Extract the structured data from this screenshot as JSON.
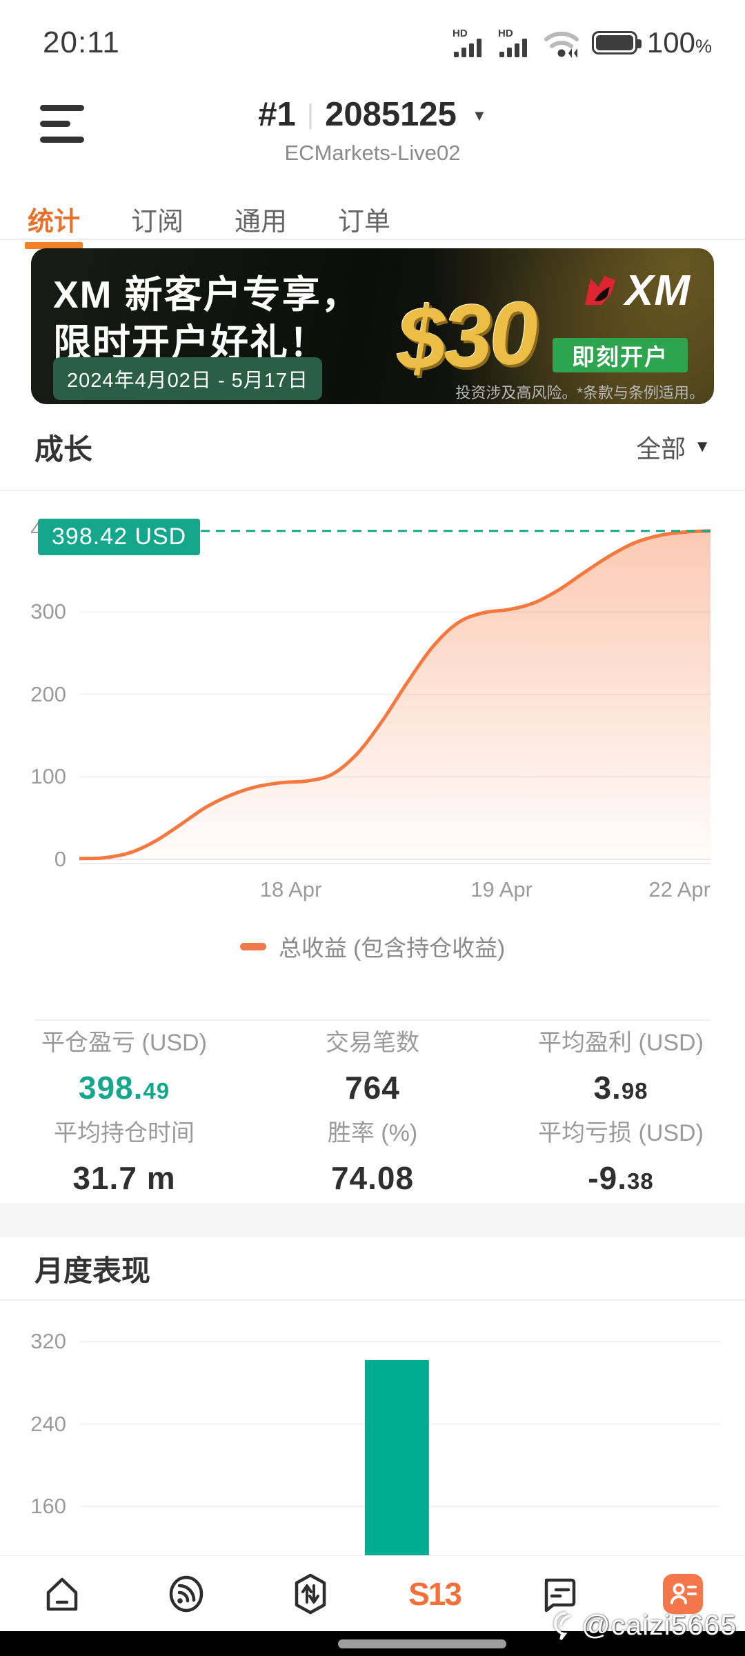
{
  "status_bar": {
    "time": "20:11",
    "hd_label": "HD",
    "battery_value": "100",
    "battery_symbol": "%"
  },
  "header": {
    "account_rank": "#1",
    "account_id": "2085125",
    "dropdown_caret": "▼",
    "server_name": "ECMarkets-Live02"
  },
  "tabs": {
    "items": [
      {
        "label": "统计",
        "active": true
      },
      {
        "label": "订阅",
        "active": false
      },
      {
        "label": "通用",
        "active": false
      },
      {
        "label": "订单",
        "active": false
      }
    ]
  },
  "banner": {
    "title_line1": "XM 新客户专享，",
    "title_line2": "限时开户好礼！",
    "date_range": "2024年4月02日 - 5月17日",
    "amount": "$30",
    "brand": "XM",
    "cta_label": "即刻开户",
    "disclaimer": "投资涉及高风险。*条款与条例适用。"
  },
  "growth": {
    "title": "成长",
    "filter_label": "全部",
    "filter_caret": "▼",
    "annotation_label": "398.42 USD",
    "legend_label": "总收益 (包含持仓收益)"
  },
  "stats": {
    "items": [
      {
        "label": "平仓盈亏 (USD)",
        "value": "398.49",
        "int": "398.",
        "dec": "49",
        "green": true
      },
      {
        "label": "交易笔数",
        "value": "764",
        "int": "764",
        "dec": "",
        "green": false
      },
      {
        "label": "平均盈利 (USD)",
        "value": "3.98",
        "int": "3.",
        "dec": "98",
        "green": false
      },
      {
        "label": "平均持仓时间",
        "value": "31.7 m",
        "int": "31.7 m",
        "dec": "",
        "green": false
      },
      {
        "label": "胜率 (%)",
        "value": "74.08",
        "int": "74.08",
        "dec": "",
        "green": false
      },
      {
        "label": "平均亏损 (USD)",
        "value": "-9.38",
        "int": "-9.",
        "dec": "38",
        "green": false
      }
    ]
  },
  "monthly": {
    "title": "月度表现"
  },
  "bottom_nav": {
    "items": [
      "home",
      "feed",
      "trade",
      "s13",
      "chat",
      "contacts"
    ],
    "s13_label": "S13",
    "active_item": "contacts"
  },
  "watermark": {
    "handle": "@caizi5665"
  },
  "colors": {
    "accent_orange": "#e8722b",
    "chart_line_orange": "#f5793f",
    "teal": "#14a78c",
    "bar_teal": "#00ac90",
    "stat_green": "#14a78c",
    "banner_button_green": "#2da44e",
    "banner_date_badge_green": "#2a5e45",
    "nav_active_orange": "#f4764b"
  },
  "chart_data": [
    {
      "type": "area",
      "title": "成长",
      "legend": [
        "总收益 (包含持仓收益)"
      ],
      "legend_position": "bottom",
      "grid": true,
      "yticks": [
        0,
        100,
        200,
        300,
        400
      ],
      "grid_values": [
        0,
        100,
        200,
        300
      ],
      "ylim": [
        0,
        430
      ],
      "annotation_value": 398.42,
      "annotation_label": "398.42 USD",
      "xticks": [
        {
          "label": "18 Apr",
          "pos": 0.335
        },
        {
          "label": "19 Apr",
          "pos": 0.669
        },
        {
          "label": "22 Apr",
          "pos": 0.951
        }
      ],
      "series": [
        {
          "name": "总收益 (包含持仓收益)",
          "points": [
            [
              0.0,
              1
            ],
            [
              0.04,
              2
            ],
            [
              0.08,
              8
            ],
            [
              0.12,
              22
            ],
            [
              0.16,
              42
            ],
            [
              0.2,
              63
            ],
            [
              0.24,
              78
            ],
            [
              0.28,
              88
            ],
            [
              0.32,
              93
            ],
            [
              0.36,
              95
            ],
            [
              0.4,
              103
            ],
            [
              0.44,
              128
            ],
            [
              0.48,
              168
            ],
            [
              0.52,
              215
            ],
            [
              0.56,
              258
            ],
            [
              0.6,
              287
            ],
            [
              0.64,
              299
            ],
            [
              0.68,
              303
            ],
            [
              0.72,
              311
            ],
            [
              0.76,
              327
            ],
            [
              0.8,
              348
            ],
            [
              0.84,
              368
            ],
            [
              0.88,
              384
            ],
            [
              0.92,
              393
            ],
            [
              0.96,
              397
            ],
            [
              1.0,
              398.42
            ]
          ]
        }
      ]
    },
    {
      "type": "bar",
      "title": "月度表现",
      "categories": [
        ""
      ],
      "values": [
        302
      ],
      "yticks": [
        160,
        240,
        320
      ],
      "ylim_visible": [
        135,
        340
      ],
      "grid": true,
      "bar_center": 0.495,
      "bar_width_fraction": 0.1
    }
  ]
}
